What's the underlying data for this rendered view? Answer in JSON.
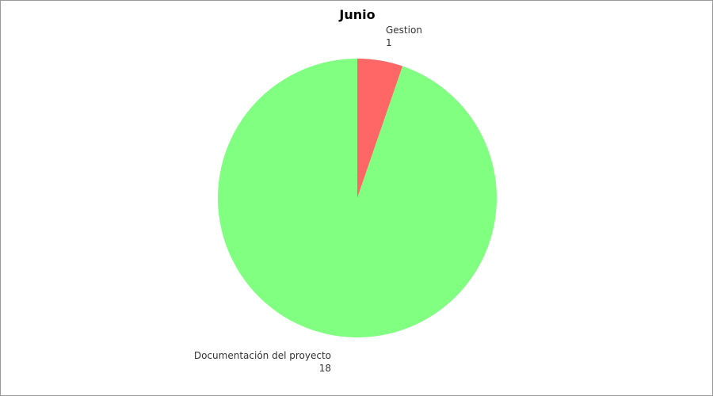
{
  "chart_data": {
    "type": "pie",
    "title": "Junio",
    "slices": [
      {
        "label": "Gestion",
        "value": 1,
        "color": "#ff6666"
      },
      {
        "label": "Documentación del proyecto",
        "value": 18,
        "color": "#80ff80"
      }
    ],
    "start_angle_deg": 0,
    "direction": "clockwise",
    "legend": "none"
  }
}
